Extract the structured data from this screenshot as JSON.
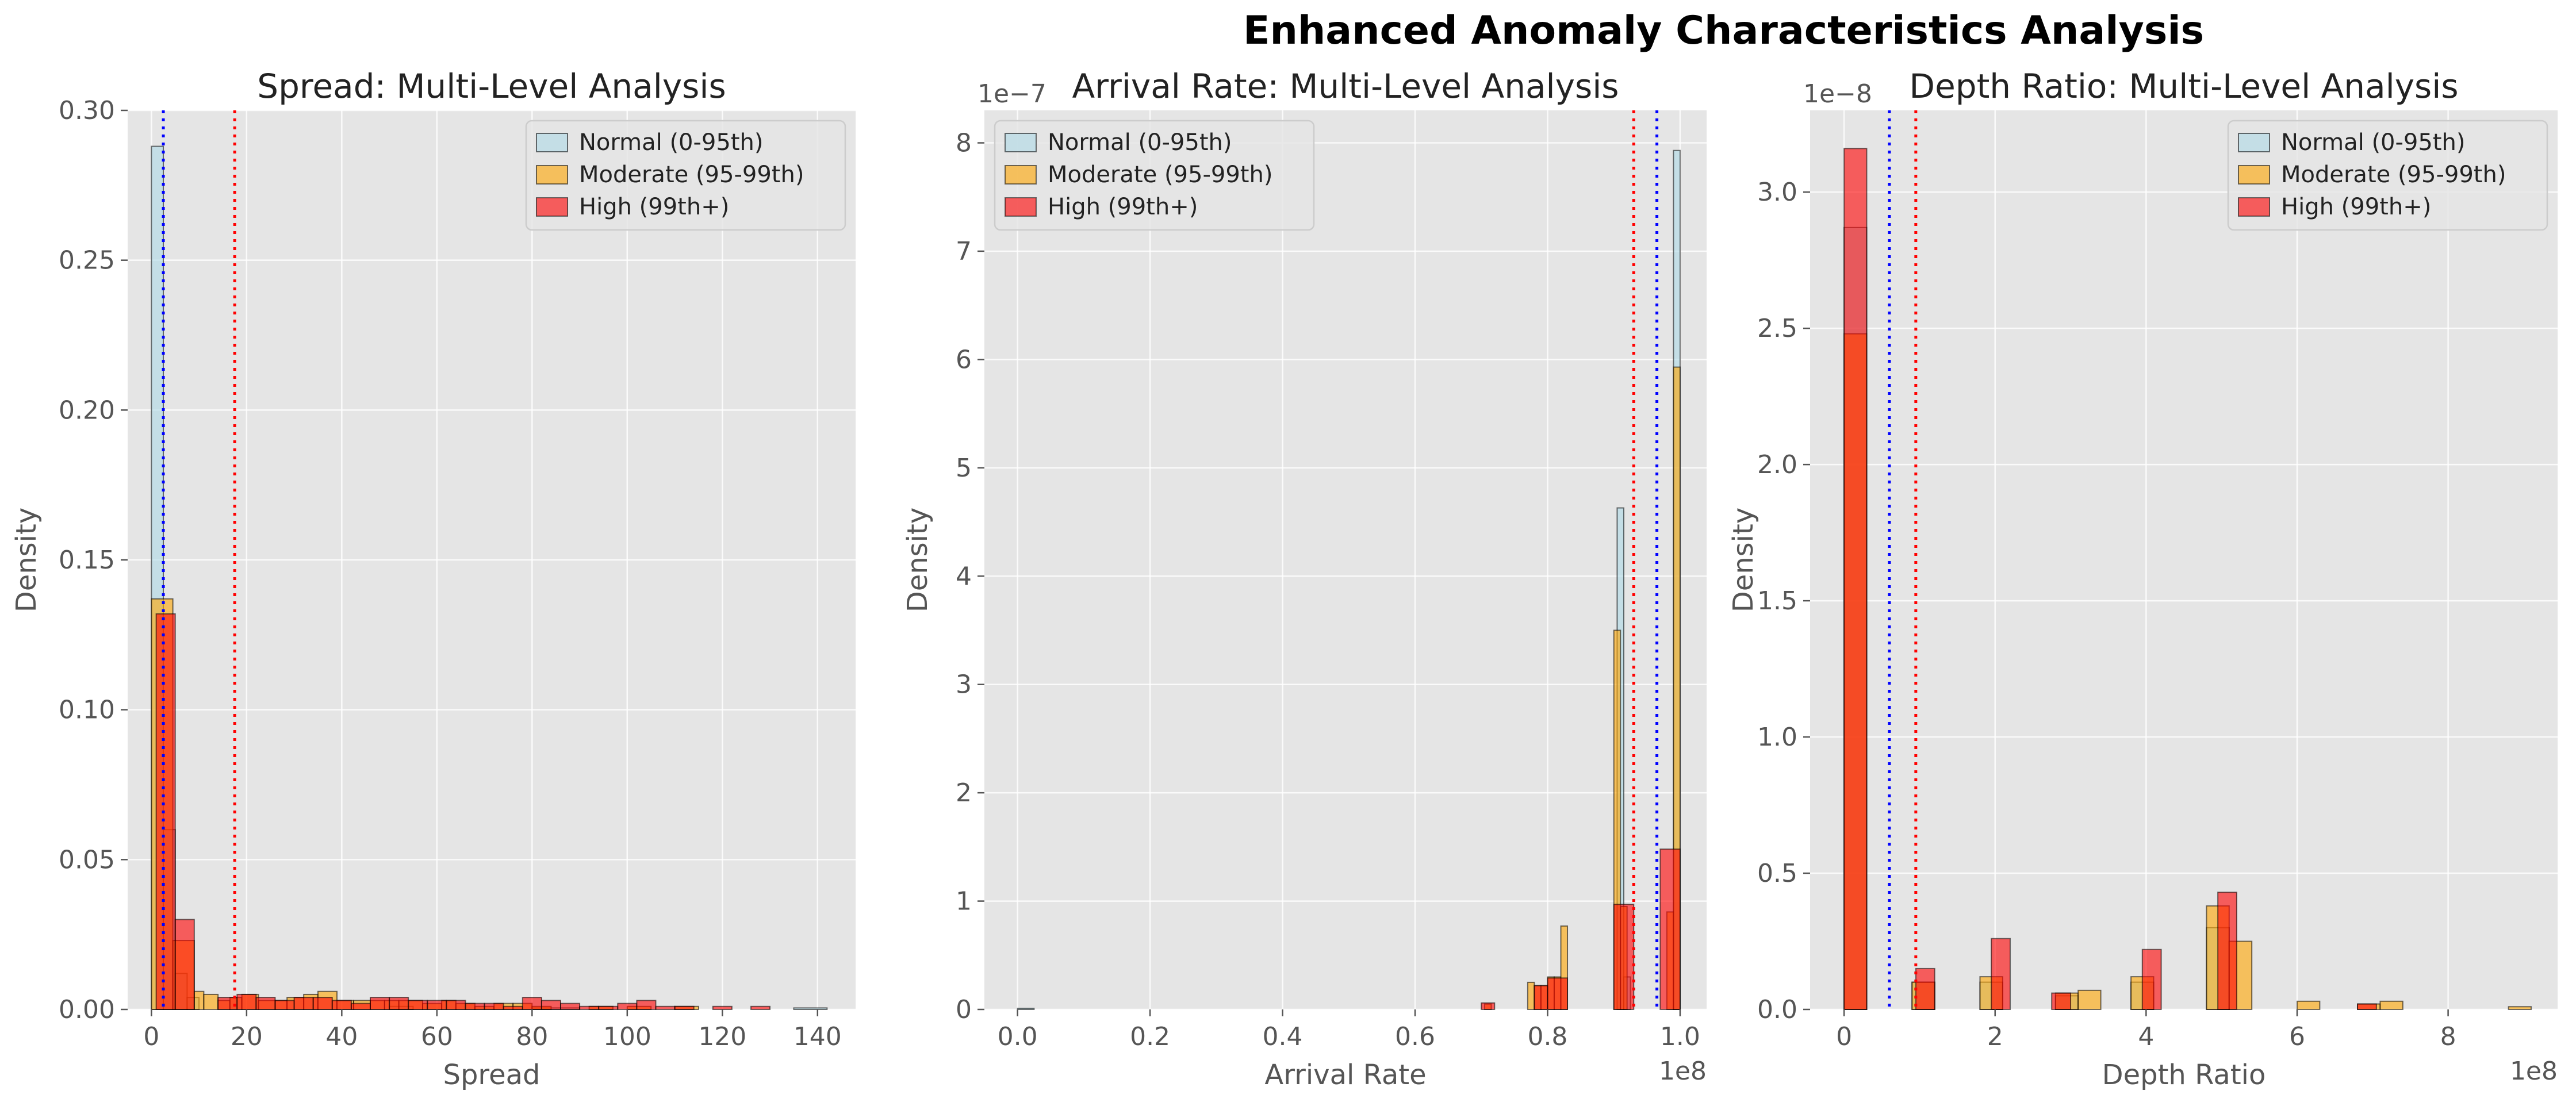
{
  "figure": {
    "title": "Enhanced Anomaly Characteristics Analysis",
    "colors": {
      "background": "#ffffff",
      "axes_face": "#e5e5e5",
      "grid": "#ffffff",
      "tick_text": "#555555",
      "normal": "#add8e6",
      "moderate": "#ffa500",
      "high": "#ff0000",
      "high_fill_opacity": 0.6,
      "normal_fill_opacity": 0.6,
      "moderate_fill_opacity": 0.6,
      "blue_line": "#0000ff",
      "red_line": "#ff0000"
    },
    "legend_labels": [
      "Normal (0-95th)",
      "Moderate (95-99th)",
      "High (99th+)"
    ]
  },
  "chart_data": [
    {
      "type": "bar",
      "title": "Spread: Multi-Level Analysis",
      "xlabel": "Spread",
      "ylabel": "Density",
      "xlim": [
        -5,
        148
      ],
      "ylim": [
        0,
        0.3
      ],
      "xticks": [
        0,
        20,
        40,
        60,
        80,
        100,
        120,
        140
      ],
      "xtick_labels": [
        "0",
        "20",
        "40",
        "60",
        "80",
        "100",
        "120",
        "140"
      ],
      "yticks": [
        0,
        0.05,
        0.1,
        0.15,
        0.2,
        0.25,
        0.3
      ],
      "ytick_labels": [
        "0.00",
        "0.05",
        "0.10",
        "0.15",
        "0.20",
        "0.25",
        "0.30"
      ],
      "offset_text": "",
      "offset_text_x": "",
      "legend_position": "top-right",
      "grid": true,
      "vlines": [
        {
          "x": 2.5,
          "color": "blue"
        },
        {
          "x": 17.5,
          "color": "red"
        }
      ],
      "series": [
        {
          "name": "Normal (0-95th)",
          "color_key": "normal",
          "bins": [
            [
              0,
              2.5,
              0.288
            ],
            [
              2.5,
              5,
              0.06
            ],
            [
              5,
              7.5,
              0.012
            ],
            [
              7.5,
              10,
              0.004
            ],
            [
              50,
              55,
              0.001
            ],
            [
              80,
              90,
              0.0005
            ],
            [
              135,
              142,
              0.0005
            ]
          ]
        },
        {
          "name": "Moderate (95-99th)",
          "color_key": "moderate",
          "bins": [
            [
              0,
              4.5,
              0.137
            ],
            [
              4.5,
              9,
              0.023
            ],
            [
              9,
              11,
              0.006
            ],
            [
              11,
              14,
              0.005
            ],
            [
              14,
              16.5,
              0.003
            ],
            [
              16.5,
              19,
              0.004
            ],
            [
              19,
              22.5,
              0.005
            ],
            [
              22.5,
              26,
              0.003
            ],
            [
              26,
              28.5,
              0.003
            ],
            [
              28.5,
              32,
              0.004
            ],
            [
              32,
              35,
              0.005
            ],
            [
              35,
              39,
              0.006
            ],
            [
              39,
              42.5,
              0.003
            ],
            [
              42.5,
              46,
              0.003
            ],
            [
              46,
              49,
              0.003
            ],
            [
              49,
              52,
              0.003
            ],
            [
              52,
              57,
              0.003
            ],
            [
              57,
              61,
              0.002
            ],
            [
              61,
              64,
              0.003
            ],
            [
              64,
              68,
              0.002
            ],
            [
              68,
              72,
              0.001
            ],
            [
              72,
              76,
              0.002
            ],
            [
              76,
              80,
              0.002
            ],
            [
              80,
              84,
              0.001
            ],
            [
              92,
              97,
              0.001
            ],
            [
              100,
              105,
              0.001
            ],
            [
              110,
              115,
              0.001
            ]
          ]
        },
        {
          "name": "High (99th+)",
          "color_key": "high",
          "bins": [
            [
              1,
              5,
              0.132
            ],
            [
              5,
              9,
              0.03
            ],
            [
              14,
              18,
              0.004
            ],
            [
              18,
              22,
              0.005
            ],
            [
              22,
              26,
              0.004
            ],
            [
              26,
              30,
              0.003
            ],
            [
              30,
              34,
              0.004
            ],
            [
              34,
              38,
              0.004
            ],
            [
              38,
              42,
              0.003
            ],
            [
              42,
              46,
              0.002
            ],
            [
              46,
              50,
              0.004
            ],
            [
              50,
              54,
              0.004
            ],
            [
              54,
              58,
              0.003
            ],
            [
              58,
              62,
              0.003
            ],
            [
              62,
              66,
              0.003
            ],
            [
              66,
              70,
              0.002
            ],
            [
              70,
              74,
              0.002
            ],
            [
              74,
              78,
              0.001
            ],
            [
              78,
              82,
              0.004
            ],
            [
              82,
              86,
              0.003
            ],
            [
              86,
              90,
              0.002
            ],
            [
              90,
              94,
              0.001
            ],
            [
              94,
              98,
              0.001
            ],
            [
              98,
              102,
              0.002
            ],
            [
              102,
              106,
              0.003
            ],
            [
              106,
              110,
              0.001
            ],
            [
              110,
              114,
              0.001
            ],
            [
              118,
              122,
              0.001
            ],
            [
              126,
              130,
              0.001
            ]
          ]
        }
      ]
    },
    {
      "type": "bar",
      "title": "Arrival Rate: Multi-Level Analysis",
      "xlabel": "Arrival Rate",
      "ylabel": "Density",
      "xlim": [
        -0.05,
        1.04
      ],
      "ylim": [
        0,
        8.3
      ],
      "xticks": [
        0,
        0.2,
        0.4,
        0.6,
        0.8,
        1.0
      ],
      "xtick_labels": [
        "0.0",
        "0.2",
        "0.4",
        "0.6",
        "0.8",
        "1.0"
      ],
      "yticks": [
        0,
        1,
        2,
        3,
        4,
        5,
        6,
        7,
        8
      ],
      "ytick_labels": [
        "0",
        "1",
        "2",
        "3",
        "4",
        "5",
        "6",
        "7",
        "8"
      ],
      "offset_text": "1e−7",
      "offset_text_x": "1e8",
      "legend_position": "top-left",
      "grid": true,
      "vlines": [
        {
          "x": 0.93,
          "color": "red"
        },
        {
          "x": 0.965,
          "color": "blue"
        }
      ],
      "series": [
        {
          "name": "Normal (0-95th)",
          "color_key": "normal",
          "bins": [
            [
              0.0,
              0.025,
              0.01
            ],
            [
              0.905,
              0.915,
              4.63
            ],
            [
              0.915,
              0.925,
              0.3
            ],
            [
              0.99,
              1.0,
              7.93
            ]
          ]
        },
        {
          "name": "Moderate (95-99th)",
          "color_key": "moderate",
          "bins": [
            [
              0.705,
              0.715,
              0.05
            ],
            [
              0.77,
              0.78,
              0.25
            ],
            [
              0.78,
              0.79,
              0.22
            ],
            [
              0.79,
              0.8,
              0.22
            ],
            [
              0.8,
              0.81,
              0.3
            ],
            [
              0.81,
              0.82,
              0.3
            ],
            [
              0.82,
              0.83,
              0.77
            ],
            [
              0.9,
              0.91,
              3.5
            ],
            [
              0.91,
              0.92,
              0.95
            ],
            [
              0.98,
              0.99,
              0.9
            ],
            [
              0.99,
              1.0,
              5.93
            ]
          ]
        },
        {
          "name": "High (99th+)",
          "color_key": "high",
          "bins": [
            [
              0.7,
              0.72,
              0.06
            ],
            [
              0.78,
              0.8,
              0.22
            ],
            [
              0.8,
              0.83,
              0.29
            ],
            [
              0.9,
              0.93,
              0.97
            ],
            [
              0.97,
              1.0,
              1.48
            ]
          ]
        }
      ]
    },
    {
      "type": "bar",
      "title": "Depth Ratio: Multi-Level Analysis",
      "xlabel": "Depth Ratio",
      "ylabel": "Density",
      "xlim": [
        -0.45,
        9.45
      ],
      "ylim": [
        0,
        3.3
      ],
      "xticks": [
        0,
        2,
        4,
        6,
        8
      ],
      "xtick_labels": [
        "0",
        "2",
        "4",
        "6",
        "8"
      ],
      "yticks": [
        0,
        0.5,
        1.0,
        1.5,
        2.0,
        2.5,
        3.0
      ],
      "ytick_labels": [
        "0.0",
        "0.5",
        "1.0",
        "1.5",
        "2.0",
        "2.5",
        "3.0"
      ],
      "offset_text": "1e−8",
      "offset_text_x": "1e8",
      "legend_position": "top-right",
      "grid": true,
      "vlines": [
        {
          "x": 0.6,
          "color": "blue"
        },
        {
          "x": 0.95,
          "color": "red"
        }
      ],
      "series": [
        {
          "name": "Normal (0-95th)",
          "color_key": "normal",
          "bins": [
            [
              0,
              0.3,
              2.87
            ],
            [
              0.9,
              1.2,
              0.1
            ],
            [
              1.8,
              2.1,
              0.1
            ],
            [
              2.8,
              3.1,
              0.05
            ],
            [
              3.8,
              4.1,
              0.1
            ],
            [
              4.8,
              5.1,
              0.3
            ]
          ]
        },
        {
          "name": "Moderate (95-99th)",
          "color_key": "moderate",
          "bins": [
            [
              0,
              0.3,
              2.48
            ],
            [
              0.9,
              1.2,
              0.1
            ],
            [
              1.8,
              2.1,
              0.12
            ],
            [
              2.8,
              3.1,
              0.06
            ],
            [
              3.1,
              3.4,
              0.07
            ],
            [
              3.8,
              4.1,
              0.12
            ],
            [
              4.8,
              5.1,
              0.38
            ],
            [
              5.1,
              5.4,
              0.25
            ],
            [
              6.0,
              6.3,
              0.03
            ],
            [
              6.8,
              7.1,
              0.02
            ],
            [
              7.1,
              7.4,
              0.03
            ],
            [
              8.8,
              9.1,
              0.01
            ]
          ]
        },
        {
          "name": "High (99th+)",
          "color_key": "high",
          "bins": [
            [
              0,
              0.3,
              3.16
            ],
            [
              0.95,
              1.2,
              0.15
            ],
            [
              1.95,
              2.2,
              0.26
            ],
            [
              2.75,
              3.0,
              0.06
            ],
            [
              3.95,
              4.2,
              0.22
            ],
            [
              4.95,
              5.2,
              0.43
            ],
            [
              6.8,
              7.05,
              0.02
            ]
          ]
        }
      ]
    }
  ]
}
